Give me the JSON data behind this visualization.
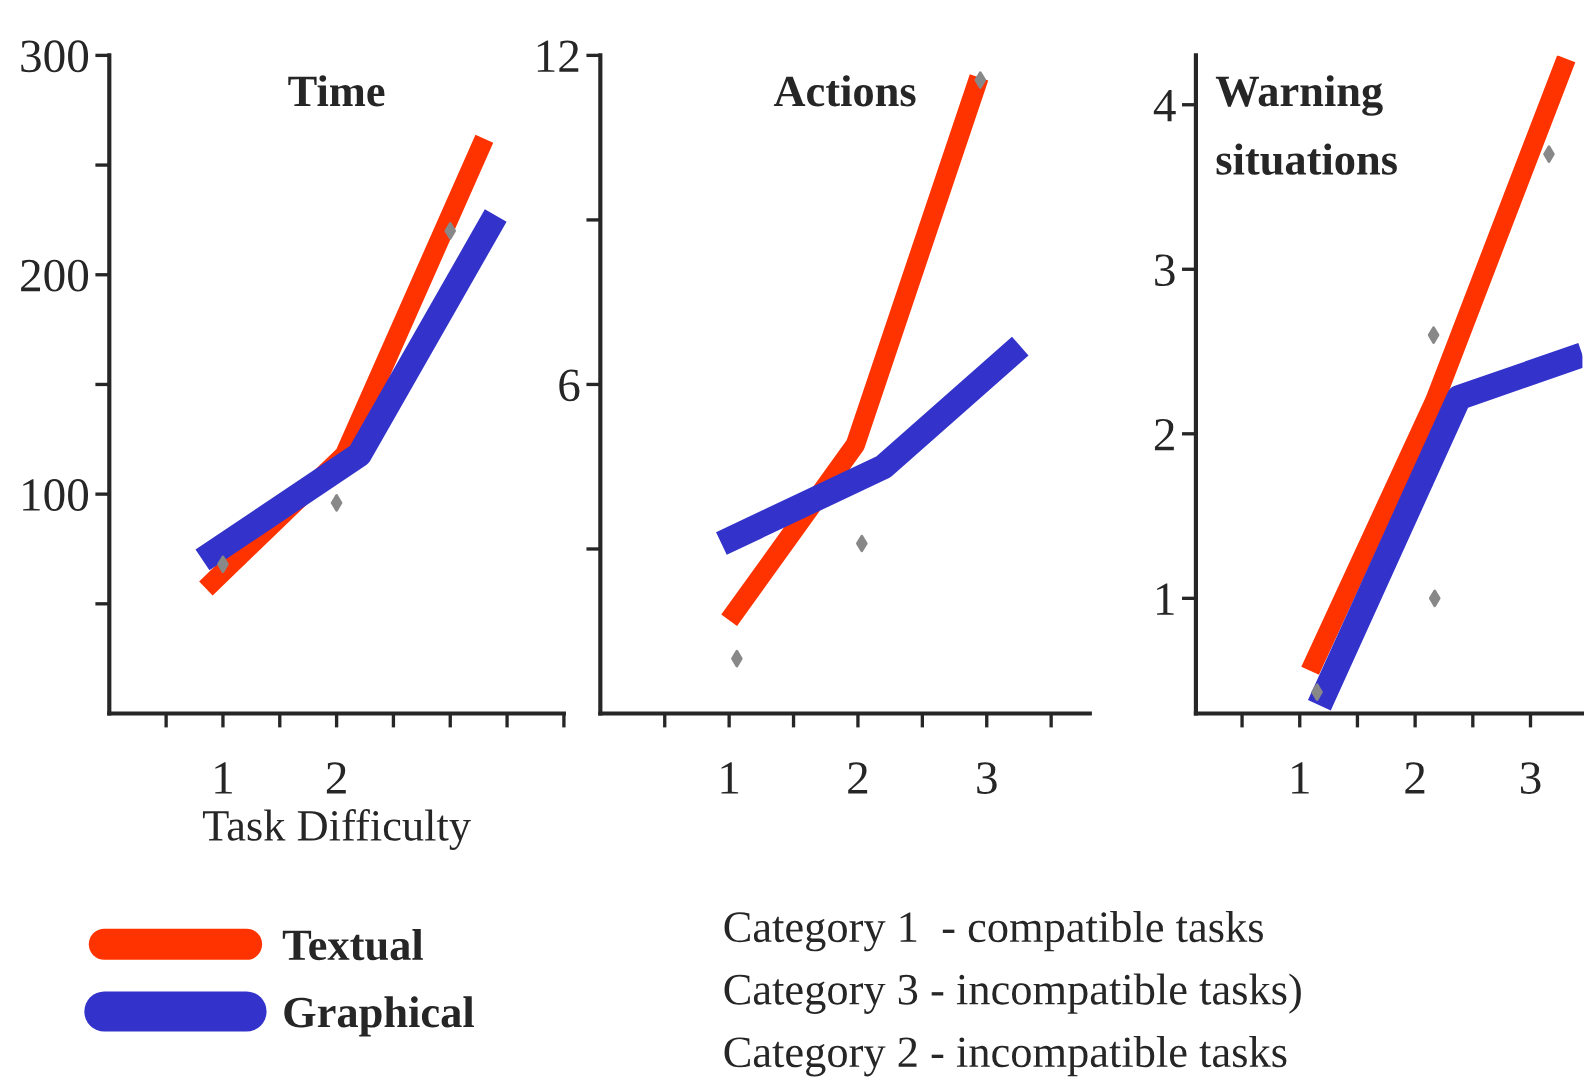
{
  "chart_data": [
    {
      "type": "line",
      "title": "Time",
      "xlabel": "Task Difficulty",
      "xlim": [
        0,
        4
      ],
      "ylim": [
        0,
        300
      ],
      "xticks": [
        {
          "value": 0.5,
          "label": null
        },
        1,
        {
          "value": 1.5,
          "label": null
        },
        2,
        {
          "value": 2.5,
          "label": null
        },
        {
          "value": 3,
          "label": null
        },
        {
          "value": 3.5,
          "label": null
        },
        {
          "value": 4,
          "label": null
        }
      ],
      "yticks": [
        {
          "value": 50,
          "label": null
        },
        100,
        {
          "value": 150,
          "label": null
        },
        200,
        {
          "value": 250,
          "label": null
        },
        300
      ],
      "legend": "bottom",
      "grid": false,
      "series": [
        {
          "name": "Textual",
          "color": "#ff3300",
          "x": [
            0.85,
            2.07,
            3.3
          ],
          "values": [
            57,
            118,
            262
          ]
        },
        {
          "name": "Graphical",
          "color": "#3333cc",
          "x": [
            0.82,
            2.2,
            3.4
          ],
          "values": [
            70,
            118,
            227
          ]
        },
        {
          "type": "scatter",
          "color": "#888888",
          "marker": "diamond",
          "x": [
            1,
            2,
            3
          ],
          "values": [
            68,
            96,
            220
          ]
        }
      ]
    },
    {
      "type": "line",
      "title": "Actions",
      "xlim": [
        0,
        3.8
      ],
      "ylim": [
        0,
        12
      ],
      "xticks": [
        {
          "value": 0.5,
          "label": null
        },
        1,
        {
          "value": 1.5,
          "label": null
        },
        2,
        {
          "value": 2.5,
          "label": null
        },
        3,
        {
          "value": 3.5,
          "label": null
        }
      ],
      "yticks": [
        {
          "value": 3,
          "label": null
        },
        6,
        {
          "value": 9,
          "label": null
        },
        12
      ],
      "grid": false,
      "annotations": [
        "Category 1  - compatible tasks",
        "Category 3 - incompatible tasks)",
        "Category 2 - incompatible tasks"
      ],
      "series": [
        {
          "color": "#ff3300",
          "x": [
            1.0,
            1.98,
            2.94
          ],
          "values": [
            1.7,
            4.9,
            11.6
          ]
        },
        {
          "color": "#3333cc",
          "x": [
            0.94,
            2.2,
            3.26
          ],
          "values": [
            3.1,
            4.5,
            6.7
          ]
        },
        {
          "type": "scatter",
          "color": "#888888",
          "marker": "diamond",
          "x": [
            1.06,
            2.03,
            2.95
          ],
          "values": [
            1.0,
            3.1,
            11.55
          ]
        }
      ]
    },
    {
      "type": "line",
      "title": "Warning\nsituations",
      "xlim": [
        0.1,
        3.45
      ],
      "ylim": [
        0.3,
        4.3
      ],
      "xticks": [
        {
          "value": 0.5,
          "label": null
        },
        1,
        {
          "value": 1.5,
          "label": null
        },
        2,
        {
          "value": 2.5,
          "label": null
        },
        3
      ],
      "yticks": [
        1,
        2,
        3,
        4
      ],
      "grid": false,
      "series": [
        {
          "color": "#ff3300",
          "x": [
            1.09,
            2.17,
            3.31
          ],
          "values": [
            0.56,
            2.2,
            4.28
          ]
        },
        {
          "color": "#3333cc",
          "x": [
            1.17,
            2.38,
            3.45
          ],
          "values": [
            0.35,
            2.22,
            2.48
          ]
        },
        {
          "type": "scatter",
          "color": "#888888",
          "marker": "diamond",
          "x": [
            1.15,
            2.17,
            3.16,
            2.16
          ],
          "values": [
            0.43,
            1.0,
            3.7,
            2.6
          ]
        }
      ]
    }
  ]
}
